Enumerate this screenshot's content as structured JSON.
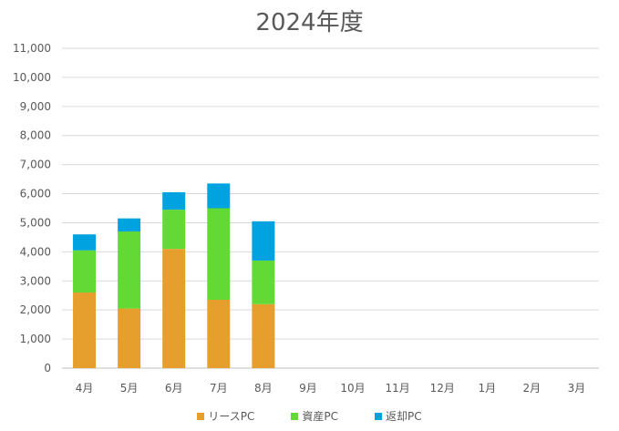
{
  "chart_data": {
    "type": "bar",
    "stacked": true,
    "title": "2024年度",
    "categories": [
      "4月",
      "5月",
      "6月",
      "7月",
      "8月",
      "9月",
      "10月",
      "11月",
      "12月",
      "1月",
      "2月",
      "3月"
    ],
    "ylim": [
      0,
      11000
    ],
    "yticks": [
      "0",
      "1,000",
      "2,000",
      "3,000",
      "4,000",
      "5,000",
      "6,000",
      "7,000",
      "8,000",
      "9,000",
      "10,000",
      "11,000"
    ],
    "ytick_values": [
      0,
      1000,
      2000,
      3000,
      4000,
      5000,
      6000,
      7000,
      8000,
      9000,
      10000,
      11000
    ],
    "grid": true,
    "legend_position": "bottom",
    "series": [
      {
        "name": "リースPC",
        "color": "#E69E2D",
        "values": [
          2600,
          2050,
          4100,
          2350,
          2200,
          null,
          null,
          null,
          null,
          null,
          null,
          null
        ]
      },
      {
        "name": "資産PC",
        "color": "#62D935",
        "values": [
          1450,
          2650,
          1350,
          3150,
          1500,
          null,
          null,
          null,
          null,
          null,
          null,
          null
        ]
      },
      {
        "name": "返却PC",
        "color": "#00A2E0",
        "values": [
          550,
          450,
          600,
          850,
          1350,
          null,
          null,
          null,
          null,
          null,
          null,
          null
        ]
      }
    ]
  }
}
